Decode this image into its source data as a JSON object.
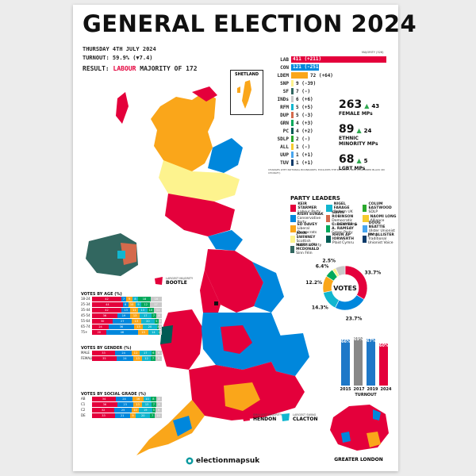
{
  "poster": {
    "title": "GENERAL ELECTION 2024",
    "date": "THURSDAY 4TH JULY 2024",
    "turnout_label": "TURNOUT: 59.9% (▼7.4)",
    "result_label": "RESULT:",
    "result_party": "LABOUR",
    "result_value": "MAJORITY OF 172",
    "majority_line_label": "MAJORITY (326)",
    "seats_footnote": "CHANGES WITH NOTIONAL BOUNDARIES. EXCLUDES THE SPEAKER'S SEAT (COLOURED BLACK ON CHORLEY)",
    "shetland_label": "SHETLAND",
    "greater_london_label": "GREATER LONDON",
    "brand": "electionmapsuk",
    "largest_majority_label": "LARGEST MAJORITY",
    "largest_majority_seat": "BOOTLE",
    "smallest_majority_label": "SMALLEST MAJORITY",
    "smallest_majority_seat": "HENDON",
    "largest_swing_label": "LARGEST SWING",
    "largest_swing_seat": "CLACTON",
    "colors": {
      "lab": "#e4003b",
      "con": "#0087dc",
      "ldem": "#faa61a",
      "snp": "#fdf38e",
      "sf": "#326760",
      "ind": "#c9c9c9",
      "rfm": "#12b6cf",
      "dup": "#d46a4c",
      "grn": "#02a95b",
      "pc": "#005b54",
      "sdlp": "#2aa82c",
      "all": "#f6cb2f",
      "uup": "#48a5ee",
      "tuv": "#0c3a6a"
    }
  },
  "seats": [
    {
      "code": "LAB",
      "value": 411,
      "label": "411 (+211)",
      "color": "#e4003b"
    },
    {
      "code": "CON",
      "value": 121,
      "label": "121 (-251)",
      "color": "#0087dc"
    },
    {
      "code": "LDEM",
      "value": 72,
      "label": "72 (+64)",
      "color": "#faa61a"
    },
    {
      "code": "SNP",
      "value": 9,
      "label": "9 (-39)",
      "color": "#fdf38e"
    },
    {
      "code": "SF",
      "value": 7,
      "label": "7 (-)",
      "color": "#326760"
    },
    {
      "code": "INDs",
      "value": 6,
      "label": "6 (+6)",
      "color": "#c9c9c9"
    },
    {
      "code": "RFM",
      "value": 5,
      "label": "5 (+5)",
      "color": "#12b6cf"
    },
    {
      "code": "DUP",
      "value": 5,
      "label": "5 (-3)",
      "color": "#d46a4c"
    },
    {
      "code": "GRN",
      "value": 4,
      "label": "4 (+3)",
      "color": "#02a95b"
    },
    {
      "code": "PC",
      "value": 4,
      "label": "4 (+2)",
      "color": "#005b54"
    },
    {
      "code": "SDLP",
      "value": 2,
      "label": "2 (-)",
      "color": "#2aa82c"
    },
    {
      "code": "ALL",
      "value": 1,
      "label": "1 (-)",
      "color": "#f6cb2f"
    },
    {
      "code": "UUP",
      "value": 1,
      "label": "1 (+1)",
      "color": "#48a5ee"
    },
    {
      "code": "TUV",
      "value": 1,
      "label": "1 (+1)",
      "color": "#0c3a6a"
    }
  ],
  "stats": {
    "female_value": "263",
    "female_change": "43",
    "female_label": "FEMALE MPs",
    "ethnic_value": "89",
    "ethnic_change": "24",
    "ethnic_label": "ETHNIC MINORITY MPs",
    "lgbt_value": "68",
    "lgbt_change": "5",
    "lgbt_label": "LGBT MPs"
  },
  "leaders_heading": "PARTY LEADERS",
  "leaders": [
    {
      "name": "KEIR STARMER",
      "party": "Labour Party",
      "color": "#e4003b"
    },
    {
      "name": "NIGEL FARAGE",
      "party": "Reform UK",
      "color": "#12b6cf"
    },
    {
      "name": "COLUM EASTWOOD",
      "party": "SDLP",
      "color": "#2aa82c"
    },
    {
      "name": "RISHI SUNAK",
      "party": "Conservative Party",
      "color": "#0087dc"
    },
    {
      "name": "GAVIN ROBINSON",
      "party": "Democratic Unionist Party",
      "color": "#d46a4c"
    },
    {
      "name": "NAOMI LONG",
      "party": "Alliance",
      "color": "#f6cb2f"
    },
    {
      "name": "ED DAVEY",
      "party": "Liberal Democrats",
      "color": "#faa61a"
    },
    {
      "name": "C. DENYER & A. RAMSAY",
      "party": "Green Party",
      "color": "#02a95b"
    },
    {
      "name": "DOUG BEATTIE",
      "party": "Ulster Unionist Party",
      "color": "#48a5ee"
    },
    {
      "name": "JOHN SWINNEY",
      "party": "Scottish National Party",
      "color": "#fdf38e"
    },
    {
      "name": "RHUN AP IORWERTH",
      "party": "Plaid Cymru",
      "color": "#005b54"
    },
    {
      "name": "JIM ALLISTER",
      "party": "Traditional Unionist Voice",
      "color": "#0c3a6a"
    },
    {
      "name": "MARY LOU MCDONALD",
      "party": "Sinn Féin",
      "color": "#326760"
    }
  ],
  "votes": {
    "center_label": "VOTES",
    "slices": [
      {
        "party": "LAB",
        "pct": 33.7,
        "label": "33.7%",
        "color": "#e4003b"
      },
      {
        "party": "CON",
        "pct": 23.7,
        "label": "23.7%",
        "color": "#0087dc"
      },
      {
        "party": "RFM",
        "pct": 14.3,
        "label": "14.3%",
        "color": "#12b6cf"
      },
      {
        "party": "LDEM",
        "pct": 12.2,
        "label": "12.2%",
        "color": "#faa61a"
      },
      {
        "party": "GRN",
        "pct": 6.4,
        "label": "6.4%",
        "color": "#02a95b"
      },
      {
        "party": "SNP",
        "pct": 2.5,
        "label": "2.5%",
        "color": "#fdf38e"
      },
      {
        "party": "OTH",
        "pct": 7.2,
        "label": "",
        "color": "#c9c9c9"
      }
    ]
  },
  "turnout_chart": {
    "heading": "TURNOUT",
    "bars": [
      {
        "year": "2015",
        "pct": 66,
        "label": "66%",
        "color": "#1e78c8"
      },
      {
        "year": "2017",
        "pct": 69,
        "label": "69%",
        "color": "#888888"
      },
      {
        "year": "2019",
        "pct": 67,
        "label": "67%",
        "color": "#1e78c8"
      },
      {
        "year": "2024",
        "pct": 60,
        "label": "60%",
        "color": "#e4003b"
      }
    ]
  },
  "age_table": {
    "heading": "VOTES BY AGE (%)",
    "rows": [
      {
        "label": "18-24",
        "values": [
          42,
          7,
          9,
          8,
          18,
          16
        ]
      },
      {
        "label": "25-34",
        "values": [
          44,
          8,
          10,
          9,
          12,
          17
        ]
      },
      {
        "label": "35-44",
        "values": [
          42,
          13,
          11,
          13,
          10,
          11
        ]
      },
      {
        "label": "45-54",
        "values": [
          36,
          19,
          13,
          17,
          7,
          8
        ]
      },
      {
        "label": "55-64",
        "values": [
          30,
          27,
          13,
          20,
          5,
          5
        ]
      },
      {
        "label": "65-74",
        "values": [
          24,
          36,
          13,
          20,
          3,
          4
        ]
      },
      {
        "label": "75+",
        "values": [
          20,
          46,
          15,
          14,
          2,
          3
        ]
      }
    ]
  },
  "gender_table": {
    "heading": "VOTES BY GENDER (%)",
    "rows": [
      {
        "label": "MALE",
        "values": [
          33,
          24,
          11,
          17,
          6,
          9
        ]
      },
      {
        "label": "FEMALE",
        "values": [
          35,
          24,
          13,
          12,
          7,
          9
        ]
      }
    ]
  },
  "grade_table": {
    "heading": "VOTES BY SOCIAL GRADE (%)",
    "rows": [
      {
        "label": "AB",
        "values": [
          34,
          24,
          16,
          10,
          8,
          8
        ]
      },
      {
        "label": "C1",
        "values": [
          36,
          23,
          13,
          13,
          7,
          8
        ]
      },
      {
        "label": "C2",
        "values": [
          32,
          25,
          10,
          19,
          5,
          9
        ]
      },
      {
        "label": "DE",
        "values": [
          33,
          21,
          9,
          20,
          7,
          10
        ]
      }
    ]
  },
  "table_colors": [
    "#e4003b",
    "#0087dc",
    "#faa61a",
    "#12b6cf",
    "#02a95b",
    "#c9c9c9"
  ]
}
